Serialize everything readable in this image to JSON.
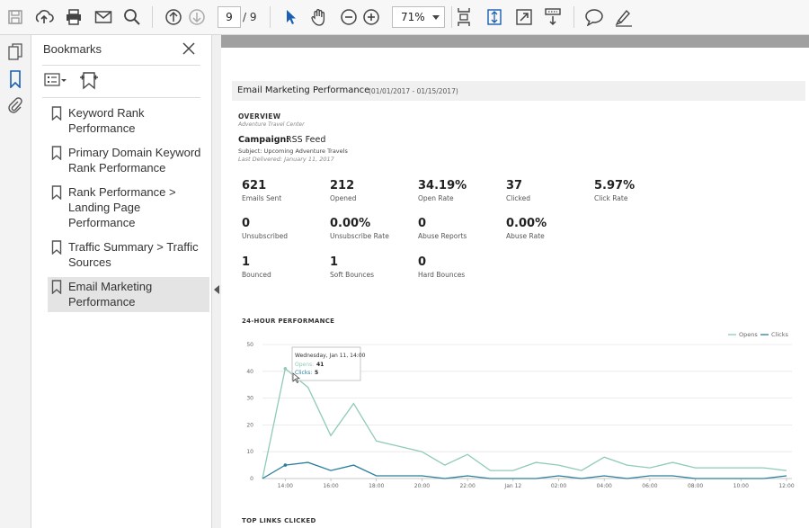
{
  "toolbar": {
    "page_current": "9",
    "page_total": "/ 9",
    "zoom": "71%",
    "icons": [
      "save-icon",
      "upload-icon",
      "print-icon",
      "email-icon",
      "search-icon",
      "page-up-icon",
      "page-down-icon",
      "select-tool-icon",
      "hand-tool-icon",
      "zoom-out-icon",
      "zoom-in-icon",
      "fit-page-icon",
      "fit-width-icon",
      "full-screen-icon",
      "scroll-mode-icon",
      "comment-icon",
      "highlight-icon"
    ]
  },
  "sidebar": {
    "rail_icons": [
      "pages-icon",
      "bookmarks-icon",
      "attachments-icon"
    ],
    "title": "Bookmarks",
    "items": [
      {
        "label": "Keyword Rank Performance"
      },
      {
        "label": "Primary Domain Keyword Rank Performance"
      },
      {
        "label": "Rank Performance > Landing Page Performance"
      },
      {
        "label": "Traffic Summary > Traffic Sources"
      },
      {
        "label": "Email Marketing Performance",
        "selected": true
      }
    ]
  },
  "report": {
    "title": "Email Marketing Performance",
    "date_range": "(01/01/2017 - 01/15/2017)",
    "overview_label": "OVERVIEW",
    "overview_sub": "Adventure Travel Center",
    "campaign_label": "Campaign:",
    "campaign_value": "RSS Feed",
    "subject": "Subject: Upcoming Adventure Travels",
    "last_delivered": "Last Delivered: January 11, 2017",
    "metrics": [
      {
        "value": "621",
        "label": "Emails Sent"
      },
      {
        "value": "212",
        "label": "Opened"
      },
      {
        "value": "34.19%",
        "label": "Open Rate"
      },
      {
        "value": "37",
        "label": "Clicked"
      },
      {
        "value": "5.97%",
        "label": "Click Rate"
      },
      {
        "value": "0",
        "label": "Unsubscribed"
      },
      {
        "value": "0.00%",
        "label": "Unsubscribe Rate"
      },
      {
        "value": "0",
        "label": "Abuse Reports"
      },
      {
        "value": "0.00%",
        "label": "Abuse Rate"
      },
      {
        "value": "1",
        "label": "Bounced"
      },
      {
        "value": "1",
        "label": "Soft Bounces"
      },
      {
        "value": "0",
        "label": "Hard Bounces"
      }
    ],
    "perf_title": "24-HOUR PERFORMANCE",
    "top_links_title": "TOP LINKS CLICKED"
  },
  "colors": {
    "opens": "#8fcbb6",
    "clicks": "#2a7f9a"
  },
  "chart_data": {
    "type": "line",
    "x": [
      "13:00",
      "14:00",
      "15:00",
      "16:00",
      "17:00",
      "18:00",
      "19:00",
      "20:00",
      "21:00",
      "22:00",
      "23:00",
      "Jan 12",
      "01:00",
      "02:00",
      "03:00",
      "04:00",
      "05:00",
      "06:00",
      "07:00",
      "08:00",
      "09:00",
      "10:00",
      "11:00",
      "12:00"
    ],
    "x_tick_labels": [
      "14:00",
      "16:00",
      "18:00",
      "20:00",
      "22:00",
      "Jan 12",
      "02:00",
      "04:00",
      "06:00",
      "08:00",
      "10:00",
      "12:00"
    ],
    "series": [
      {
        "name": "Opens",
        "values": [
          0,
          41,
          34,
          16,
          28,
          14,
          12,
          10,
          5,
          9,
          3,
          3,
          6,
          5,
          3,
          8,
          5,
          4,
          6,
          4,
          4,
          4,
          4,
          3
        ]
      },
      {
        "name": "Clicks",
        "values": [
          0,
          5,
          6,
          3,
          5,
          1,
          1,
          1,
          0,
          1,
          0,
          0,
          0,
          1,
          0,
          1,
          0,
          1,
          1,
          0,
          0,
          0,
          0,
          1
        ]
      }
    ],
    "ylim": [
      0,
      50
    ],
    "y_ticks": [
      0,
      10,
      20,
      30,
      40,
      50
    ],
    "grid": true,
    "legend": "top-right",
    "tooltip": {
      "title": "Wednesday, Jan 11, 14:00",
      "opens_label": "Opens:",
      "opens_value": "41",
      "clicks_label": "Clicks:",
      "clicks_value": "5"
    }
  }
}
